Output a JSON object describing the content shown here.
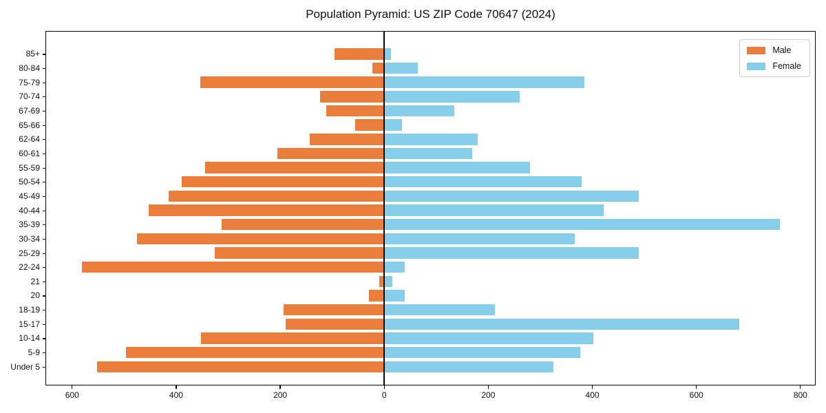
{
  "title": "Population Pyramid: US ZIP Code 70647 (2024)",
  "legend": {
    "male_label": "Male",
    "female_label": "Female",
    "position": "upper right"
  },
  "colors": {
    "male": "#E97D3C",
    "female": "#87CEEB",
    "axis": "#000000",
    "legend_border": "#cccccc"
  },
  "chart_data": {
    "type": "bar",
    "subtype": "population-pyramid",
    "title": "Population Pyramid: US ZIP Code 70647 (2024)",
    "xlabel": "",
    "ylabel": "",
    "grid": false,
    "legend_position": "upper right",
    "categories": [
      "85+",
      "80-84",
      "75-79",
      "70-74",
      "67-69",
      "65-66",
      "62-64",
      "60-61",
      "55-59",
      "50-54",
      "45-49",
      "40-44",
      "35-39",
      "30-34",
      "25-29",
      "22-24",
      "21",
      "20",
      "18-19",
      "15-17",
      "10-14",
      "5-9",
      "Under 5"
    ],
    "series": [
      {
        "name": "Male",
        "direction": "left",
        "values": [
          95,
          23,
          354,
          123,
          112,
          56,
          143,
          206,
          345,
          389,
          415,
          453,
          312,
          476,
          326,
          581,
          10,
          30,
          194,
          190,
          352,
          496,
          552
        ]
      },
      {
        "name": "Female",
        "direction": "right",
        "values": [
          13,
          64,
          385,
          260,
          134,
          34,
          180,
          169,
          280,
          380,
          489,
          422,
          760,
          366,
          489,
          40,
          15,
          40,
          213,
          682,
          402,
          377,
          325
        ]
      }
    ],
    "xlim": [
      -650,
      828
    ],
    "x_tick_values": [
      -600,
      -400,
      -200,
      0,
      200,
      400,
      600,
      800
    ],
    "x_tick_labels": [
      "600",
      "400",
      "200",
      "0",
      "200",
      "400",
      "600",
      "800"
    ]
  }
}
